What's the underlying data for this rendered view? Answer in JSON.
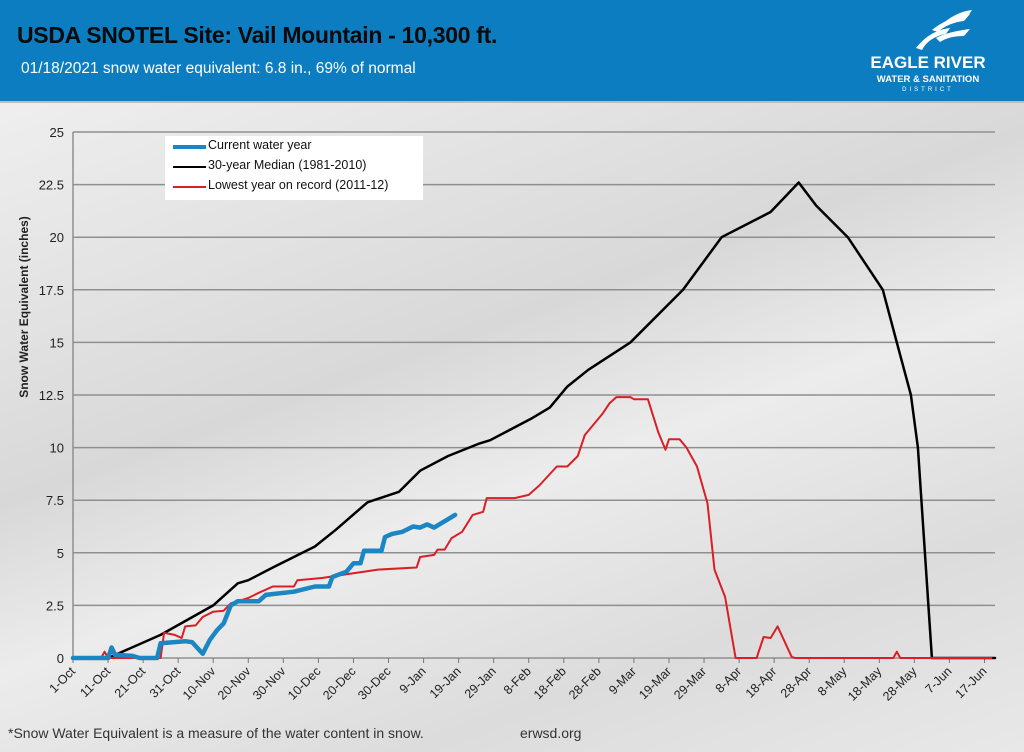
{
  "header": {
    "title": "USDA SNOTEL Site: Vail Mountain - 10,300 ft.",
    "subtitle": "01/18/2021 snow water equivalent: 6.8 in., 69% of normal",
    "logo_name": "EAGLE RIVER",
    "logo_sub": "WATER & SANITATION",
    "logo_district": "DISTRICT",
    "background_color": "#0b7dc0"
  },
  "footer": {
    "footnote": "*Snow Water Equivalent is a measure of the water content in snow.",
    "website": "erwsd.org"
  },
  "chart_data": {
    "type": "line",
    "title": "USDA SNOTEL Site: Vail Mountain - 10,300 ft.",
    "xlabel": "",
    "ylabel": "Snow Water Equivalent (inches)",
    "xlim": [
      "2020-10-01",
      "2021-06-21"
    ],
    "ylim": [
      0,
      25
    ],
    "grid": "horizontal",
    "legend_position": "top-left",
    "x_tick_labels": [
      "1-Oct",
      "11-Oct",
      "21-Oct",
      "31-Oct",
      "10-Nov",
      "20-Nov",
      "30-Nov",
      "10-Dec",
      "20-Dec",
      "30-Dec",
      "9-Jan",
      "19-Jan",
      "29-Jan",
      "8-Feb",
      "18-Feb",
      "28-Feb",
      "9-Mar",
      "19-Mar",
      "29-Mar",
      "8-Apr",
      "18-Apr",
      "28-Apr",
      "8-May",
      "18-May",
      "28-May",
      "7-Jun",
      "17-Jun"
    ],
    "y_tick_labels": [
      "0",
      "2.5",
      "5",
      "7.5",
      "10",
      "12.5",
      "15",
      "17.5",
      "20",
      "22.5",
      "25"
    ],
    "series": [
      {
        "name": "Current water year",
        "color": "#1a86c4",
        "points": [
          [
            "2020-10-01",
            0
          ],
          [
            "2020-10-11",
            0
          ],
          [
            "2020-10-12",
            0.5
          ],
          [
            "2020-10-13",
            0.15
          ],
          [
            "2020-10-18",
            0.1
          ],
          [
            "2020-10-20",
            0
          ],
          [
            "2020-10-25",
            0
          ],
          [
            "2020-10-26",
            0.7
          ],
          [
            "2020-11-02",
            0.8
          ],
          [
            "2020-11-04",
            0.75
          ],
          [
            "2020-11-07",
            0.2
          ],
          [
            "2020-11-09",
            0.85
          ],
          [
            "2020-11-11",
            1.3
          ],
          [
            "2020-11-13",
            1.65
          ],
          [
            "2020-11-15",
            2.5
          ],
          [
            "2020-11-17",
            2.7
          ],
          [
            "2020-11-23",
            2.7
          ],
          [
            "2020-11-25",
            3.0
          ],
          [
            "2020-12-03",
            3.15
          ],
          [
            "2020-12-09",
            3.4
          ],
          [
            "2020-12-13",
            3.4
          ],
          [
            "2020-12-14",
            3.85
          ],
          [
            "2020-12-18",
            4.1
          ],
          [
            "2020-12-20",
            4.5
          ],
          [
            "2020-12-22",
            4.5
          ],
          [
            "2020-12-23",
            5.1
          ],
          [
            "2020-12-28",
            5.1
          ],
          [
            "2020-12-29",
            5.75
          ],
          [
            "2020-12-31",
            5.9
          ],
          [
            "2021-01-03",
            6.0
          ],
          [
            "2021-01-06",
            6.25
          ],
          [
            "2021-01-08",
            6.2
          ],
          [
            "2021-01-10",
            6.35
          ],
          [
            "2021-01-12",
            6.2
          ],
          [
            "2021-01-18",
            6.8
          ]
        ]
      },
      {
        "name": "30-year Median (1981-2010)",
        "color": "#000000",
        "points": [
          [
            "2020-10-01",
            0
          ],
          [
            "2020-10-11",
            0
          ],
          [
            "2020-10-26",
            1.1
          ],
          [
            "2020-11-10",
            2.5
          ],
          [
            "2020-11-17",
            3.55
          ],
          [
            "2020-11-20",
            3.7
          ],
          [
            "2020-11-27",
            4.3
          ],
          [
            "2020-12-09",
            5.3
          ],
          [
            "2020-12-15",
            6.1
          ],
          [
            "2020-12-24",
            7.4
          ],
          [
            "2021-01-02",
            7.9
          ],
          [
            "2021-01-08",
            8.9
          ],
          [
            "2021-01-16",
            9.6
          ],
          [
            "2021-01-25",
            10.2
          ],
          [
            "2021-01-28",
            10.35
          ],
          [
            "2021-02-09",
            11.4
          ],
          [
            "2021-02-14",
            11.9
          ],
          [
            "2021-02-19",
            12.9
          ],
          [
            "2021-02-25",
            13.7
          ],
          [
            "2021-03-09",
            15.0
          ],
          [
            "2021-03-24",
            17.5
          ],
          [
            "2021-04-04",
            20.0
          ],
          [
            "2021-04-18",
            21.2
          ],
          [
            "2021-04-26",
            22.6
          ],
          [
            "2021-05-01",
            21.5
          ],
          [
            "2021-05-10",
            20.0
          ],
          [
            "2021-05-20",
            17.5
          ],
          [
            "2021-05-24",
            15.0
          ],
          [
            "2021-05-28",
            12.5
          ],
          [
            "2021-05-30",
            10.0
          ],
          [
            "2021-06-01",
            5.0
          ],
          [
            "2021-06-03",
            0
          ],
          [
            "2021-06-21",
            0
          ]
        ]
      },
      {
        "name": "Lowest year on record (2011-12)",
        "color": "#d91f26",
        "points": [
          [
            "2020-10-01",
            0
          ],
          [
            "2020-10-09",
            0
          ],
          [
            "2020-10-10",
            0.3
          ],
          [
            "2020-10-11",
            0
          ],
          [
            "2020-10-26",
            0
          ],
          [
            "2020-10-27",
            1.2
          ],
          [
            "2020-10-30",
            1.1
          ],
          [
            "2020-11-01",
            0.95
          ],
          [
            "2020-11-02",
            1.5
          ],
          [
            "2020-11-05",
            1.55
          ],
          [
            "2020-11-07",
            1.95
          ],
          [
            "2020-11-10",
            2.2
          ],
          [
            "2020-11-13",
            2.25
          ],
          [
            "2020-11-15",
            2.6
          ],
          [
            "2020-11-20",
            2.85
          ],
          [
            "2020-11-23",
            3.1
          ],
          [
            "2020-11-27",
            3.4
          ],
          [
            "2020-12-03",
            3.4
          ],
          [
            "2020-12-04",
            3.7
          ],
          [
            "2020-12-11",
            3.8
          ],
          [
            "2020-12-15",
            3.9
          ],
          [
            "2020-12-19",
            4.0
          ],
          [
            "2020-12-27",
            4.2
          ],
          [
            "2021-01-07",
            4.3
          ],
          [
            "2021-01-08",
            4.8
          ],
          [
            "2021-01-12",
            4.9
          ],
          [
            "2021-01-13",
            5.15
          ],
          [
            "2021-01-15",
            5.15
          ],
          [
            "2021-01-17",
            5.7
          ],
          [
            "2021-01-20",
            6.0
          ],
          [
            "2021-01-23",
            6.8
          ],
          [
            "2021-01-26",
            6.95
          ],
          [
            "2021-01-27",
            7.6
          ],
          [
            "2021-02-04",
            7.6
          ],
          [
            "2021-02-08",
            7.75
          ],
          [
            "2021-02-11",
            8.2
          ],
          [
            "2021-02-16",
            9.1
          ],
          [
            "2021-02-19",
            9.1
          ],
          [
            "2021-02-22",
            9.6
          ],
          [
            "2021-02-24",
            10.6
          ],
          [
            "2021-02-26",
            11.0
          ],
          [
            "2021-03-01",
            11.6
          ],
          [
            "2021-03-03",
            12.1
          ],
          [
            "2021-03-05",
            12.4
          ],
          [
            "2021-03-09",
            12.4
          ],
          [
            "2021-03-10",
            12.3
          ],
          [
            "2021-03-14",
            12.3
          ],
          [
            "2021-03-17",
            10.7
          ],
          [
            "2021-03-19",
            9.9
          ],
          [
            "2021-03-20",
            10.4
          ],
          [
            "2021-03-23",
            10.4
          ],
          [
            "2021-03-25",
            10.0
          ],
          [
            "2021-03-28",
            9.1
          ],
          [
            "2021-03-31",
            7.35
          ],
          [
            "2021-04-02",
            4.2
          ],
          [
            "2021-04-05",
            2.9
          ],
          [
            "2021-04-08",
            0
          ],
          [
            "2021-04-14",
            0
          ],
          [
            "2021-04-16",
            1.0
          ],
          [
            "2021-04-18",
            0.95
          ],
          [
            "2021-04-20",
            1.5
          ],
          [
            "2021-04-24",
            0.05
          ],
          [
            "2021-04-25",
            0
          ],
          [
            "2021-05-23",
            0
          ],
          [
            "2021-05-24",
            0.3
          ],
          [
            "2021-05-25",
            0
          ],
          [
            "2021-06-20",
            0
          ]
        ]
      }
    ]
  }
}
